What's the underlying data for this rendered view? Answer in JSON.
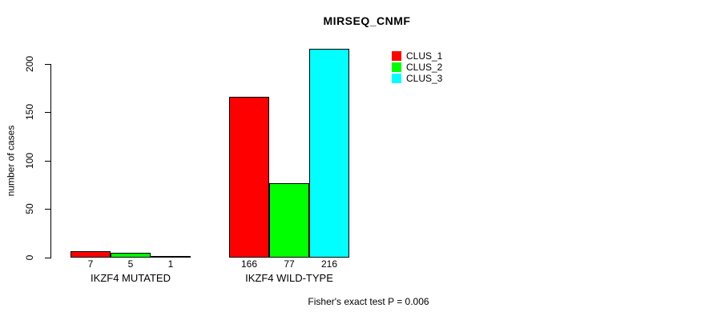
{
  "chart_data": {
    "type": "bar",
    "title": "MIRSEQ_CNMF",
    "xlabel": "",
    "ylabel": "number of cases",
    "categories": [
      "IKZF4 MUTATED",
      "IKZF4 WILD-TYPE"
    ],
    "series": [
      {
        "name": "CLUS_1",
        "color": "#ff0000",
        "values": [
          7,
          166
        ]
      },
      {
        "name": "CLUS_2",
        "color": "#00ff00",
        "values": [
          5,
          77
        ]
      },
      {
        "name": "CLUS_3",
        "color": "#00ffff",
        "values": [
          1,
          216
        ]
      }
    ],
    "y_ticks": [
      0,
      50,
      100,
      150,
      200
    ],
    "ylim": [
      0,
      216
    ],
    "grid": false,
    "legend_position": "top-right",
    "bars_labeled_with_values": true,
    "annotation": "Fisher's exact test P = 0.006"
  }
}
